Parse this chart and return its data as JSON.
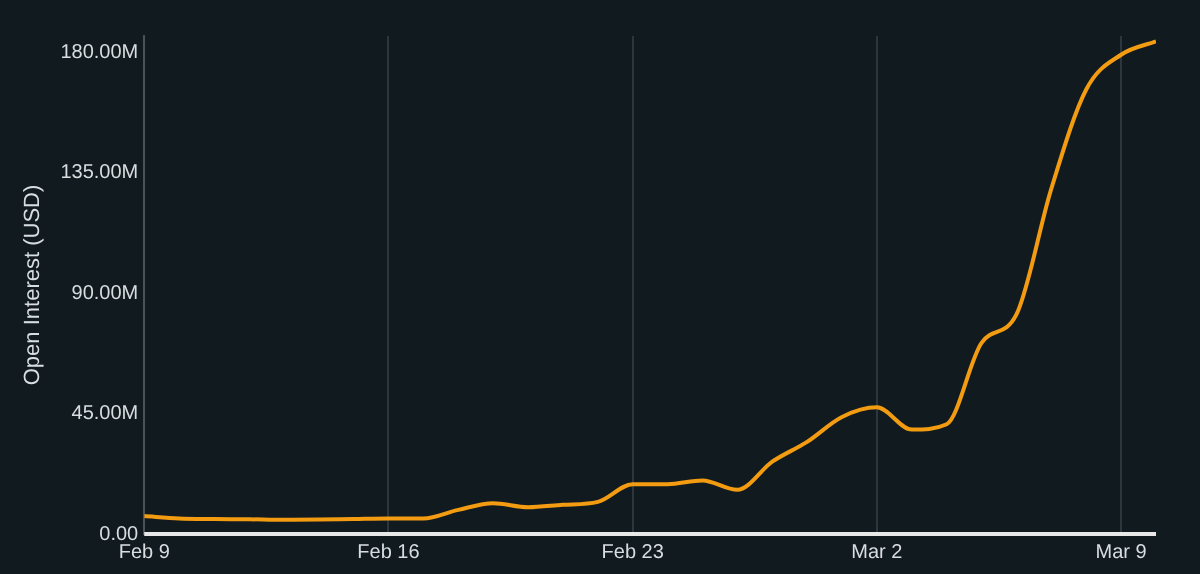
{
  "chart_data": {
    "type": "line",
    "ylabel": "Open Interest (USD)",
    "x": [
      "--02-09",
      "--02-10",
      "--02-11",
      "--02-12",
      "--02-13",
      "--02-14",
      "--02-15",
      "--02-16",
      "--02-17",
      "--02-18",
      "--02-19",
      "--02-20",
      "--02-21",
      "--02-22",
      "--02-23",
      "--02-24",
      "--02-25",
      "--02-26",
      "--02-27",
      "--02-28",
      "--03-01",
      "--03-02",
      "--03-03",
      "--03-04",
      "--03-05",
      "--03-06",
      "--03-07",
      "--03-08",
      "--03-09",
      "--03-10"
    ],
    "series": [
      {
        "color": "#f39c12",
        "values": [
          6.7,
          5.8,
          5.6,
          5.5,
          5.3,
          5.4,
          5.6,
          5.8,
          5.8,
          9,
          11.5,
          10,
          10.9,
          12,
          18.6,
          18.6,
          20,
          16.5,
          27,
          34.4,
          43.7,
          47.3,
          39,
          41,
          71.4,
          82,
          129,
          166,
          179,
          184
        ]
      }
    ],
    "xlim": [
      "--02-09",
      "--03-10"
    ],
    "xticks": [
      {
        "value": "--02-09",
        "label": "Feb 9"
      },
      {
        "value": "--02-16",
        "label": "Feb 16"
      },
      {
        "value": "--02-23",
        "label": "Feb 23"
      },
      {
        "value": "--03-02",
        "label": "Mar 2"
      },
      {
        "value": "--03-09",
        "label": "Mar 9"
      }
    ],
    "ylim": [
      0,
      186
    ],
    "yticks": [
      {
        "value": 0,
        "label": "0.00"
      },
      {
        "value": 45,
        "label": "45.00M"
      },
      {
        "value": 90,
        "label": "90.00M"
      },
      {
        "value": 135,
        "label": "135.00M"
      },
      {
        "value": 180,
        "label": "180.00M"
      }
    ],
    "grid": "x",
    "legend": false,
    "marker": "none",
    "line_style": "solid"
  }
}
